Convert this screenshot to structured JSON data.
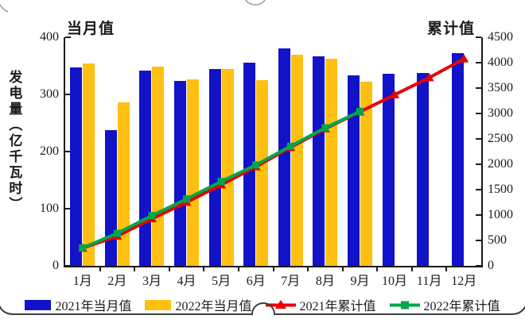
{
  "chart_data": {
    "type": "bar+line",
    "title": "",
    "categories": [
      "1月",
      "2月",
      "3月",
      "4月",
      "5月",
      "6月",
      "7月",
      "8月",
      "9月",
      "10月",
      "11月",
      "12月"
    ],
    "left_axis": {
      "title": "当月值",
      "label": "发电量（亿千瓦时）",
      "min": 0,
      "max": 400,
      "ticks": [
        0,
        100,
        200,
        300,
        400
      ]
    },
    "right_axis": {
      "title": "累计值",
      "min": 0,
      "max": 4500,
      "ticks": [
        0,
        500,
        1000,
        1500,
        2000,
        2500,
        3000,
        3500,
        4000,
        4500
      ]
    },
    "grid": false,
    "legend_position": "bottom",
    "series": [
      {
        "name": "2021年当月值",
        "type": "bar",
        "axis": "left",
        "color": "#1212C8",
        "values": [
          347,
          238,
          342,
          324,
          344,
          356,
          381,
          366,
          333,
          336,
          337,
          372
        ]
      },
      {
        "name": "2022年当月值",
        "type": "bar",
        "axis": "left",
        "color": "#FFC013",
        "values": [
          354,
          286,
          349,
          327,
          345,
          325,
          369,
          363,
          322,
          null,
          null,
          null
        ]
      },
      {
        "name": "2021年累计值",
        "type": "line",
        "axis": "right",
        "color": "#E80000",
        "marker": "triangle",
        "values": [
          347,
          585,
          927,
          1251,
          1595,
          1952,
          2333,
          2699,
          3032,
          3368,
          3705,
          4077
        ]
      },
      {
        "name": "2022年累计值",
        "type": "line",
        "axis": "right",
        "color": "#00A64C",
        "marker": "square",
        "values": [
          354,
          640,
          989,
          1316,
          1661,
          1986,
          2355,
          2718,
          3040,
          null,
          null,
          null
        ]
      }
    ]
  },
  "decorations": {
    "border_color": "#3f3f3f",
    "faint_color": "#9a9a9a"
  }
}
